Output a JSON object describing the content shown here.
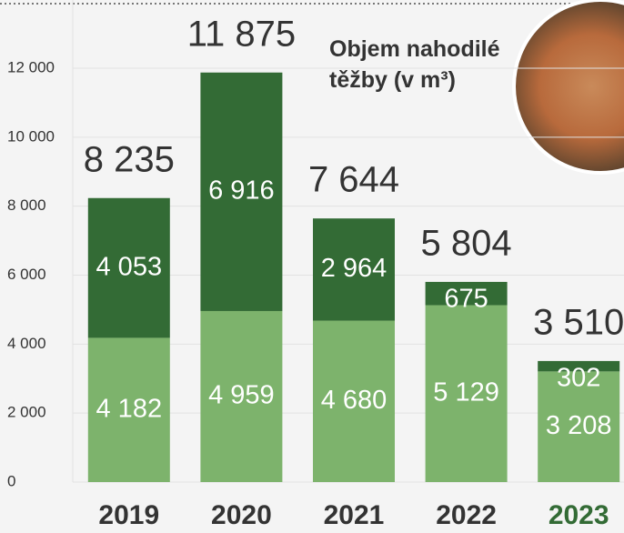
{
  "chart_data": {
    "type": "stacked-bar",
    "title": "Objem nahodilé těžby (v m³)",
    "categories": [
      "2019",
      "2020",
      "2021",
      "2022",
      "2023"
    ],
    "series": [
      {
        "color": "#7db36c",
        "values": [
          4182,
          4959,
          4680,
          5129,
          3208
        ],
        "value_labels": [
          "4 182",
          "4 959",
          "4 680",
          "5 129",
          "3 208"
        ]
      },
      {
        "color": "#336b35",
        "values": [
          4053,
          6916,
          2964,
          675,
          302
        ],
        "value_labels": [
          "4 053",
          "6 916",
          "2 964",
          "675",
          "302"
        ]
      }
    ],
    "totals": {
      "values": [
        8235,
        11875,
        7644,
        5804,
        3510
      ],
      "value_labels": [
        "8 235",
        "11 875",
        "7 644",
        "5 804",
        "3 510"
      ]
    },
    "ylim": [
      0,
      12000
    ],
    "yticks": [
      0,
      {
        "value": 2000,
        "label": "2 000"
      },
      {
        "value": 4000,
        "label": "4 000"
      },
      {
        "value": 6000,
        "label": "6 000"
      },
      {
        "value": 8000,
        "label": "8 000"
      },
      {
        "value": 10000,
        "label": "10 000"
      },
      {
        "value": 12000,
        "label": "12 000"
      }
    ],
    "grid": true
  }
}
